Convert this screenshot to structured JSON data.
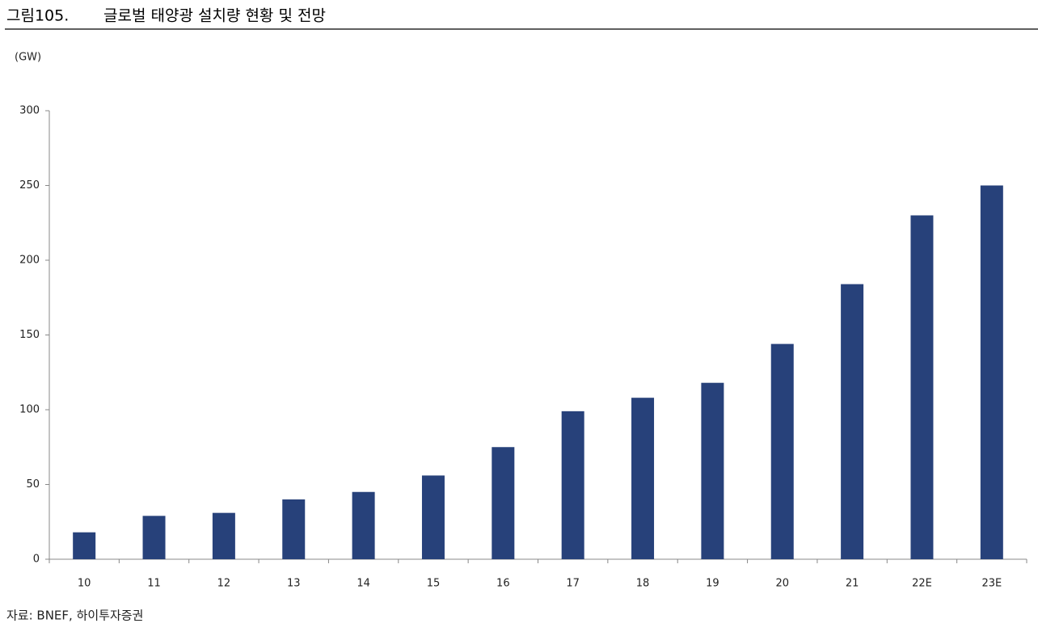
{
  "chart_data": {
    "type": "bar",
    "figure_label": "그림105.",
    "title": "글로벌 태양광 설치량 현황 및 전망",
    "unit_label": "(GW)",
    "source": "자료: BNEF, 하이투자증권",
    "categories": [
      "10",
      "11",
      "12",
      "13",
      "14",
      "15",
      "16",
      "17",
      "18",
      "19",
      "20",
      "21",
      "22E",
      "23E"
    ],
    "values": [
      18,
      29,
      31,
      40,
      45,
      56,
      75,
      99,
      108,
      118,
      144,
      184,
      230,
      250
    ],
    "color": "#27417a",
    "ylim": [
      0,
      300
    ],
    "yticks": [
      0,
      50,
      100,
      150,
      200,
      250,
      300
    ],
    "grid": false
  }
}
